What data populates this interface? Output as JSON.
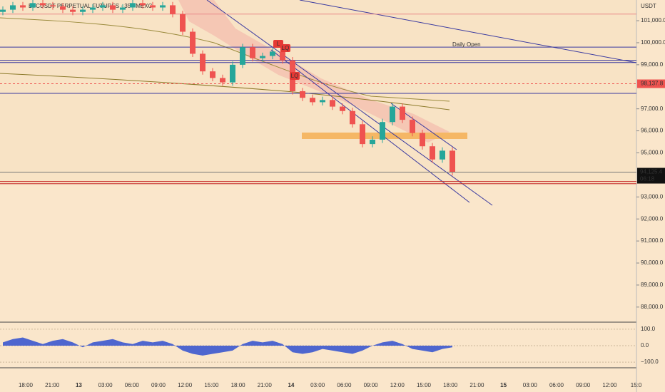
{
  "chart_data": [
    {
      "type": "candlestick",
      "title": "BTCUSDT PERPETUAL FUTURES · 35 · MEXC",
      "currency": "USDT",
      "up_color": "#26a69a",
      "down_color": "#ef5350",
      "open": [
        101400,
        101500,
        101700,
        101600,
        101800,
        101700,
        101650,
        101500,
        101400,
        101500,
        101600,
        101700,
        101500,
        101600,
        101800,
        101700,
        101600,
        101700,
        101300,
        100500,
        99500,
        98700,
        98400,
        98200,
        99000,
        99800,
        99300,
        99400,
        99600,
        99200,
        97800,
        97500,
        97300,
        97400,
        97100,
        96900,
        96300,
        95400,
        95600,
        96400,
        97100,
        96500,
        95900,
        95300,
        94700,
        95100
      ],
      "high": [
        101650,
        101850,
        101850,
        101950,
        101950,
        101850,
        101800,
        101650,
        101650,
        101750,
        101850,
        101850,
        101750,
        101950,
        101950,
        101850,
        101850,
        101850,
        101450,
        100650,
        99650,
        98850,
        98550,
        99150,
        99950,
        99950,
        99550,
        99750,
        99750,
        99350,
        97950,
        97650,
        97550,
        97550,
        97250,
        97050,
        96450,
        95750,
        96550,
        97250,
        97250,
        96650,
        96050,
        95450,
        95250,
        95250
      ],
      "low": [
        101250,
        101350,
        101450,
        101450,
        101550,
        101500,
        101350,
        101250,
        101250,
        101350,
        101450,
        101350,
        101350,
        101450,
        101550,
        101450,
        101450,
        101150,
        100350,
        99350,
        98550,
        98250,
        98050,
        98050,
        98850,
        99150,
        99150,
        99250,
        99050,
        97650,
        97350,
        97150,
        97150,
        96950,
        96750,
        96150,
        95250,
        95250,
        95450,
        96250,
        96350,
        95750,
        95150,
        94550,
        94550,
        93975
      ],
      "close": [
        101500,
        101700,
        101600,
        101800,
        101700,
        101650,
        101500,
        101400,
        101500,
        101600,
        101700,
        101500,
        101600,
        101800,
        101700,
        101600,
        101700,
        101300,
        100500,
        99500,
        98700,
        98400,
        98200,
        99000,
        99800,
        99300,
        99400,
        99600,
        99200,
        97800,
        97500,
        97300,
        97400,
        97100,
        96900,
        96300,
        95400,
        95600,
        96400,
        97100,
        96500,
        95900,
        95300,
        94700,
        95100,
        94125
      ],
      "ylim": [
        87380,
        101940
      ],
      "yticks": [
        {
          "value": 88000,
          "label": "88,000.0"
        },
        {
          "value": 89000,
          "label": "89,000.0"
        },
        {
          "value": 90000,
          "label": "90,000.0"
        },
        {
          "value": 91000,
          "label": "91,000.0"
        },
        {
          "value": 92000,
          "label": "92,000.0"
        },
        {
          "value": 93000,
          "label": "93,000.0"
        },
        {
          "value": 95000,
          "label": "95,000.0"
        },
        {
          "value": 96000,
          "label": "96,000.0"
        },
        {
          "value": 97000,
          "label": "97,000.0"
        },
        {
          "value": 99000,
          "label": "99,000.0"
        },
        {
          "value": 100000,
          "label": "100,000.0"
        },
        {
          "value": 101000,
          "label": "101,000.0"
        }
      ],
      "levels": [
        {
          "value": 99800,
          "color": "#3a3aa0",
          "label": "Daily Open"
        },
        {
          "value": 99200,
          "color": "#3a3aa0"
        },
        {
          "value": 99100,
          "color": "#3a3aa0"
        },
        {
          "value": 97700,
          "color": "#3a3aa0"
        },
        {
          "value": 101300,
          "color": "#e88a8a"
        },
        {
          "value": 93700,
          "color": "#c62828"
        },
        {
          "value": 93600,
          "color": "#c62828"
        }
      ],
      "marked_level": {
        "value": 98137.8,
        "label": "98,137.8",
        "color": "#ef5350"
      },
      "last_price": {
        "value": 94125.4,
        "label": "94,125.4"
      },
      "countdown": "06:18",
      "markers": [
        "L",
        "LQ",
        "LQ"
      ],
      "x_labels": [
        "18:00",
        "21:00",
        "13",
        "03:00",
        "06:00",
        "09:00",
        "12:00",
        "15:00",
        "18:00",
        "21:00",
        "14",
        "03:00",
        "06:00",
        "09:00",
        "12:00",
        "15:00",
        "18:00",
        "21:00",
        "15",
        "03:00",
        "06:00",
        "09:00",
        "12:00",
        "15:0"
      ]
    },
    {
      "type": "area",
      "color": "#2f4fd0",
      "values": [
        20,
        40,
        50,
        30,
        10,
        30,
        40,
        20,
        -10,
        20,
        30,
        40,
        20,
        10,
        30,
        20,
        30,
        10,
        -30,
        -50,
        -60,
        -50,
        -40,
        -30,
        10,
        30,
        20,
        30,
        10,
        -40,
        -50,
        -40,
        -20,
        -30,
        -40,
        -50,
        -30,
        0,
        20,
        30,
        10,
        -20,
        -30,
        -40,
        -20,
        -10
      ],
      "ylim": [
        -130,
        130
      ],
      "yticks": [
        {
          "value": 100,
          "label": "100.0"
        },
        {
          "value": 0,
          "label": "0.0"
        },
        {
          "value": -100,
          "label": "−100.0"
        }
      ]
    }
  ]
}
